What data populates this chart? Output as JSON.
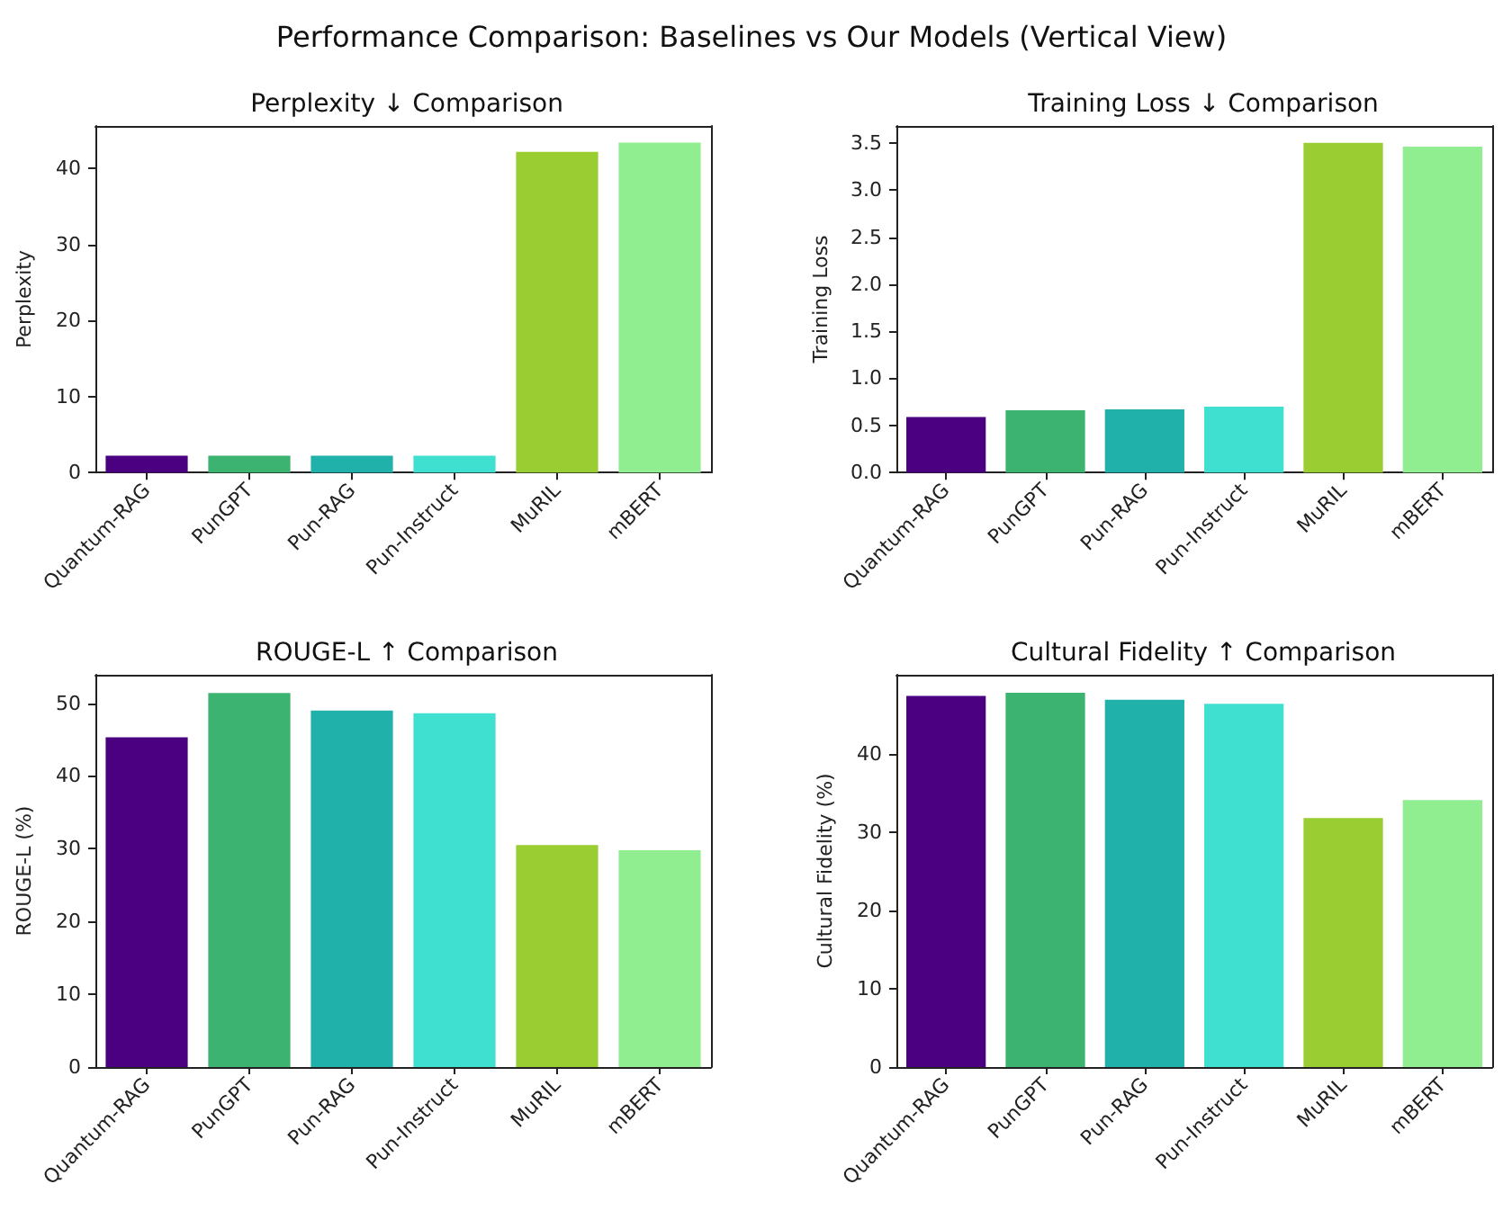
{
  "chart_data": [
    {
      "type": "other",
      "title": "Performance Comparison: Baselines vs Our Models (Vertical View)"
    },
    {
      "type": "bar",
      "title": "Perplexity ↓ Comparison",
      "ylabel": "Perplexity",
      "categories": [
        "Quantum-RAG",
        "PunGPT",
        "Pun-RAG",
        "Pun-Instruct",
        "MuRIL",
        "mBERT"
      ],
      "values": [
        2.2,
        2.2,
        2.2,
        2.2,
        42.2,
        43.4
      ],
      "colors": [
        "#4b0082",
        "#3cb371",
        "#20b2aa",
        "#40e0d0",
        "#9acd32",
        "#90ee90"
      ],
      "ylim": [
        0,
        45.6
      ],
      "yticks": [
        0,
        10,
        20,
        30,
        40
      ]
    },
    {
      "type": "bar",
      "title": "Training Loss ↓ Comparison",
      "ylabel": "Training Loss",
      "categories": [
        "Quantum-RAG",
        "PunGPT",
        "Pun-RAG",
        "Pun-Instruct",
        "MuRIL",
        "mBERT"
      ],
      "values": [
        0.59,
        0.66,
        0.67,
        0.7,
        3.5,
        3.46
      ],
      "colors": [
        "#4b0082",
        "#3cb371",
        "#20b2aa",
        "#40e0d0",
        "#9acd32",
        "#90ee90"
      ],
      "ylim": [
        0,
        3.68
      ],
      "yticks": [
        {
          "value": 0,
          "label": "0.0"
        },
        0.5,
        {
          "value": 1,
          "label": "1.0"
        },
        1.5,
        {
          "value": 2,
          "label": "2.0"
        },
        2.5,
        {
          "value": 3,
          "label": "3.0"
        },
        3.5
      ]
    },
    {
      "type": "bar",
      "title": "ROUGE-L ↑ Comparison",
      "ylabel": "ROUGE-L (%)",
      "categories": [
        "Quantum-RAG",
        "PunGPT",
        "Pun-RAG",
        "Pun-Instruct",
        "MuRIL",
        "mBERT"
      ],
      "values": [
        45.3,
        51.4,
        49.0,
        48.6,
        30.5,
        29.8
      ],
      "colors": [
        "#4b0082",
        "#3cb371",
        "#20b2aa",
        "#40e0d0",
        "#9acd32",
        "#90ee90"
      ],
      "ylim": [
        0,
        53.9
      ],
      "yticks": [
        0,
        10,
        20,
        30,
        40,
        50
      ]
    },
    {
      "type": "bar",
      "title": "Cultural Fidelity ↑ Comparison",
      "ylabel": "Cultural Fidelity (%)",
      "categories": [
        "Quantum-RAG",
        "PunGPT",
        "Pun-RAG",
        "Pun-Instruct",
        "MuRIL",
        "mBERT"
      ],
      "values": [
        47.4,
        47.8,
        46.9,
        46.4,
        31.8,
        34.1
      ],
      "colors": [
        "#4b0082",
        "#3cb371",
        "#20b2aa",
        "#40e0d0",
        "#9acd32",
        "#90ee90"
      ],
      "ylim": [
        0,
        50.1
      ],
      "yticks": [
        0,
        10,
        20,
        30,
        40
      ]
    }
  ]
}
